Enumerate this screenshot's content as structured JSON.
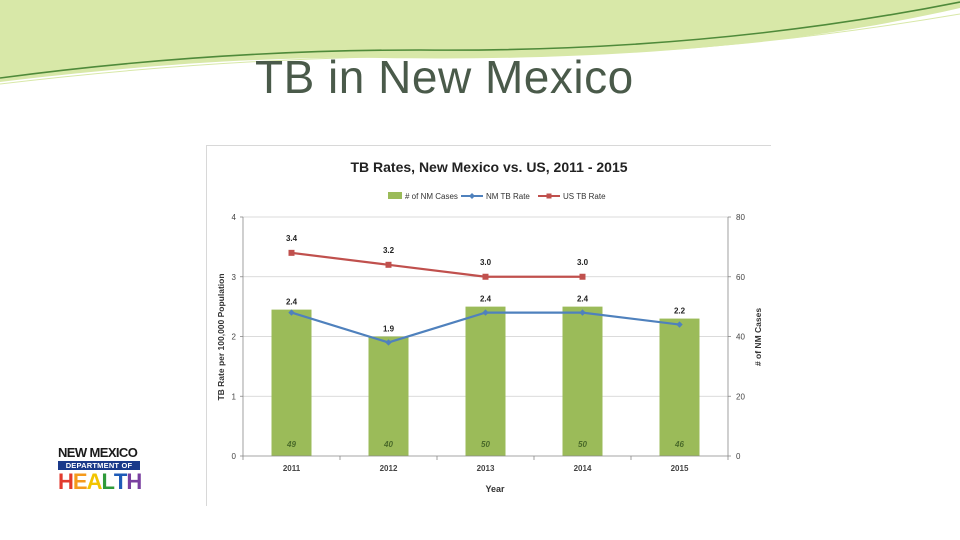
{
  "slide": {
    "title": "TB in New Mexico"
  },
  "logo": {
    "line1": "NEW MEXICO",
    "line2": "DEPARTMENT OF",
    "line3_letters": [
      "H",
      "E",
      "A",
      "L",
      "T",
      "H"
    ],
    "line3_colors": [
      "#e23b2e",
      "#f59a1c",
      "#f2c400",
      "#2f9a3a",
      "#1e5bb8",
      "#7a3fa0"
    ]
  },
  "colors": {
    "swoosh_light": "#d8e8a8",
    "swoosh_dark": "#4f8a3a",
    "bar": "#9bbb59",
    "nm_line": "#4f81bd",
    "us_line": "#c0504d",
    "bar_label": "#4a6a2a",
    "grid": "#cfcfcf",
    "axis_text": "#444444"
  },
  "chart_data": {
    "type": "bar",
    "title": "TB Rates, New Mexico vs. US, 2011 - 2015",
    "categories": [
      "2011",
      "2012",
      "2013",
      "2014",
      "2015"
    ],
    "xlabel": "Year",
    "ylabel": "TB Rate per 100,000 Population",
    "y2label": "# of NM Cases",
    "ylim": [
      0,
      4
    ],
    "y2lim": [
      0,
      80
    ],
    "yticks": [
      "0",
      "1",
      "2",
      "3",
      "4"
    ],
    "y2ticks": [
      "0",
      "20",
      "40",
      "60",
      "80"
    ],
    "legend_position": "top",
    "grid": true,
    "series": [
      {
        "name": "# of NM Cases",
        "kind": "bar",
        "axis": "right",
        "values": [
          49,
          40,
          50,
          50,
          46
        ],
        "labels": [
          "49",
          "40",
          "50",
          "50",
          "46"
        ]
      },
      {
        "name": "NM TB Rate",
        "kind": "line",
        "axis": "left",
        "values": [
          2.4,
          1.9,
          2.4,
          2.4,
          2.2
        ],
        "labels": [
          "2.4",
          "1.9",
          "2.4",
          "2.4",
          "2.2"
        ]
      },
      {
        "name": "US TB Rate",
        "kind": "line",
        "axis": "left",
        "values": [
          3.4,
          3.2,
          3.0,
          3.0,
          null
        ],
        "labels": [
          "3.4",
          "3.2",
          "3.0",
          "3.0",
          null
        ]
      }
    ]
  }
}
